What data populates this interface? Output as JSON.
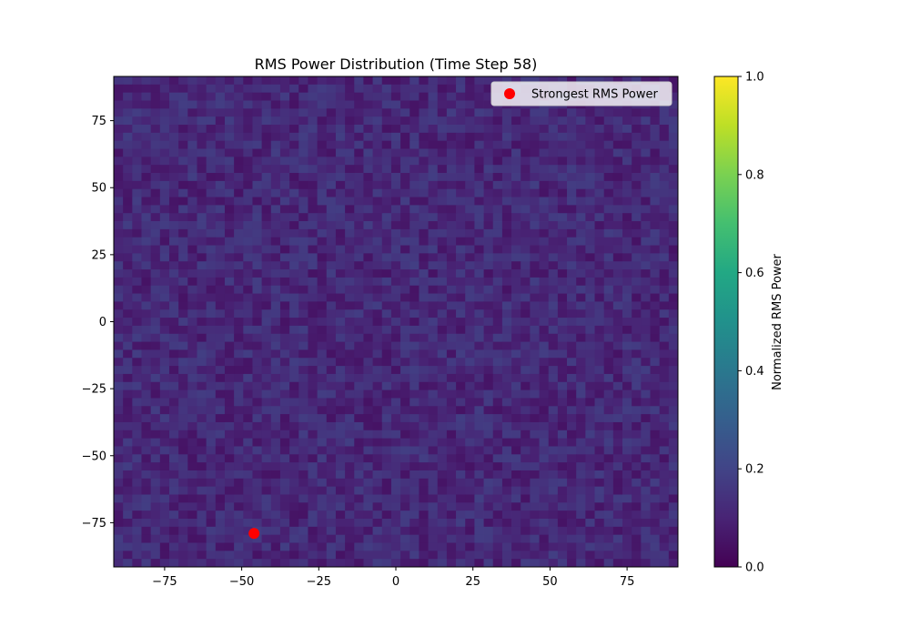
{
  "chart_data": {
    "type": "heatmap",
    "title": "RMS Power Distribution (Time Step 58)",
    "xlabel": "",
    "ylabel": "",
    "xlim": [
      -91.5,
      91.5
    ],
    "ylim": [
      -91.5,
      91.5
    ],
    "grid": false,
    "x_ticks": [
      -75,
      -50,
      -25,
      0,
      25,
      50,
      75
    ],
    "y_ticks": [
      -75,
      -50,
      -25,
      0,
      25,
      50,
      75
    ],
    "x_tick_labels": [
      "−75",
      "−50",
      "−25",
      "0",
      "25",
      "50",
      "75"
    ],
    "y_tick_labels": [
      "75",
      "50",
      "25",
      "0",
      "−25",
      "−50",
      "−75"
    ],
    "grid_shape": [
      61,
      61
    ],
    "cell_size": 3,
    "value_range_observed": [
      0.0,
      0.2
    ],
    "colormap": "viridis",
    "colorbar": {
      "label": "Normalized RMS Power",
      "range": [
        0.0,
        1.0
      ],
      "ticks": [
        0.0,
        0.2,
        0.4,
        0.6,
        0.8,
        1.0
      ],
      "tick_labels": [
        "0.0",
        "0.2",
        "0.4",
        "0.6",
        "0.8",
        "1.0"
      ]
    },
    "marker": {
      "label": "Strongest RMS Power",
      "x": -46,
      "y": -79,
      "color": "#ff0000"
    },
    "legend_placement": "top-right"
  }
}
